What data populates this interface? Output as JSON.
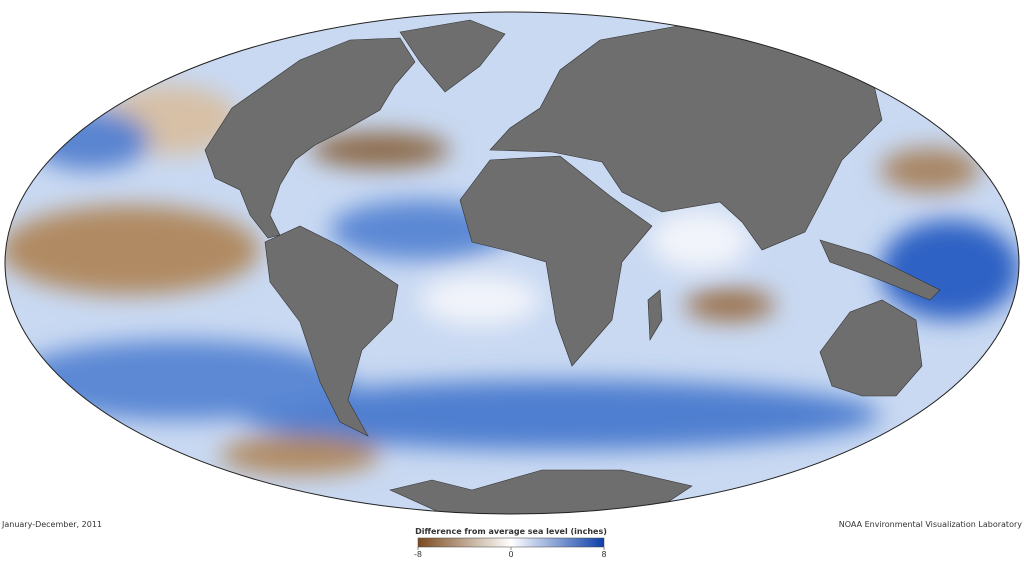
{
  "map": {
    "date": "January-December, 2011",
    "credit": "NOAA Environmental Visualization Laboratory",
    "legend": {
      "title": "Difference from average sea level (inches)",
      "range": [
        -8,
        8
      ],
      "ticks": [
        -8,
        0,
        8
      ],
      "colors": [
        "#7a4a1e",
        "#ffffff",
        "#0b3fa8"
      ]
    }
  }
}
